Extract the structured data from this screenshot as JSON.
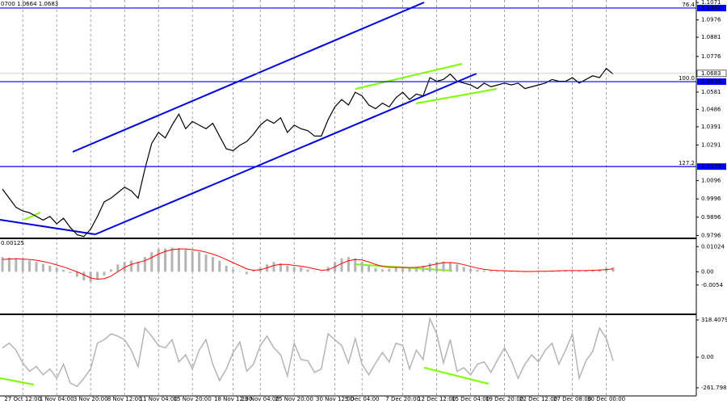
{
  "chart_data": [
    {
      "type": "line",
      "header": "0700 1.0664 1.0683",
      "categories": [
        null,
        null,
        null,
        "27 Oct 12:00",
        null,
        null,
        null,
        null,
        "1 Nov 04:00",
        null,
        null,
        null,
        null,
        "3 Nov 20:00",
        null,
        null,
        null,
        null,
        "8 Nov 12:00",
        null,
        null,
        null,
        null,
        "11 Nov 04:00",
        null,
        null,
        null,
        null,
        "15 Nov 20:00",
        null,
        null,
        null,
        null,
        null,
        "18 Nov 12:00",
        null,
        null,
        null,
        "23 Nov 04:00",
        null,
        null,
        null,
        null,
        "25 Nov 20:00",
        null,
        null,
        null,
        null,
        null,
        "30 Nov 12:00",
        null,
        null,
        null,
        "5 Dec 04:00",
        null,
        null,
        null,
        null,
        null,
        "7 Dec 20:00",
        null,
        null,
        null,
        null,
        "12 Dec 12:00",
        null,
        null,
        null,
        null,
        "15 Dec 04:00",
        null,
        null,
        null,
        null,
        "19 Dec 20:00",
        null,
        null,
        null,
        null,
        "22 Dec 12:00",
        null,
        null,
        null,
        null,
        "27 Dec 08:00",
        null,
        null,
        null,
        null,
        "30 Dec 00:00",
        null
      ],
      "values": [
        1.005,
        1.0,
        0.995,
        0.993,
        0.992,
        0.99,
        0.988,
        0.99,
        0.986,
        0.989,
        0.984,
        0.98,
        0.979,
        0.983,
        0.99,
        0.998,
        1.0,
        1.003,
        1.006,
        1.004,
        1.0,
        1.016,
        1.03,
        1.036,
        1.033,
        1.04,
        1.046,
        1.038,
        1.042,
        1.04,
        1.038,
        1.041,
        1.034,
        1.027,
        1.026,
        1.029,
        1.031,
        1.035,
        1.04,
        1.043,
        1.041,
        1.044,
        1.036,
        1.04,
        1.038,
        1.037,
        1.034,
        1.034,
        1.043,
        1.05,
        1.054,
        1.051,
        1.058,
        1.056,
        1.051,
        1.049,
        1.052,
        1.05,
        1.055,
        1.058,
        1.054,
        1.057,
        1.056,
        1.066,
        1.064,
        1.065,
        1.068,
        1.064,
        1.063,
        1.062,
        1.06,
        1.063,
        1.061,
        1.062,
        1.063,
        1.062,
        1.063,
        1.06,
        1.061,
        1.062,
        1.063,
        1.065,
        1.064,
        1.064,
        1.066,
        1.063,
        1.065,
        1.067,
        1.066,
        1.071,
        1.068
      ],
      "color": "#000000",
      "ylim": [
        0.978,
        1.1085
      ],
      "yticks": [
        1.1071,
        1.0976,
        1.0881,
        1.0776,
        1.0581,
        1.0486,
        1.0391,
        1.0291,
        1.0096,
        0.9996,
        0.9896,
        0.9796
      ],
      "levels": [
        {
          "value": 1.1041,
          "name": "76.4"
        },
        {
          "value": 1.0638,
          "name": "100.0"
        },
        {
          "value": 1.0173,
          "name": "127.2"
        }
      ],
      "level_color": "#0000ff",
      "current_price": 1.0683
    },
    {
      "type": "macd",
      "header": "0.00125",
      "histogram": {
        "color": "#b4b4b4",
        "values": [
          0.006,
          0.0058,
          0.0055,
          0.005,
          0.0046,
          0.004,
          0.0032,
          0.0025,
          0.0015,
          0.0008,
          -0.0005,
          -0.002,
          -0.0035,
          -0.004,
          -0.003,
          -0.0015,
          0.001,
          0.003,
          0.004,
          0.0045,
          0.0042,
          0.006,
          0.008,
          0.0092,
          0.0095,
          0.0098,
          0.0096,
          0.009,
          0.0085,
          0.008,
          0.007,
          0.006,
          0.0045,
          0.0025,
          0.001,
          0.0002,
          -0.001,
          0.0005,
          0.0015,
          0.003,
          0.004,
          0.0035,
          0.0025,
          0.002,
          0.0018,
          0.001,
          0.0002,
          -0.0002,
          0.002,
          0.004,
          0.0055,
          0.006,
          0.0055,
          0.004,
          0.0025,
          0.0015,
          0.001,
          0.0012,
          0.002,
          0.0018,
          0.0015,
          0.002,
          0.0025,
          0.0035,
          0.004,
          0.0042,
          0.0038,
          0.003,
          0.002,
          0.0012,
          0.0008,
          0.0005,
          0.0004,
          0.0003,
          0.0002,
          0.0002,
          0.0001,
          0.0,
          0.0001,
          0.0002,
          0.0003,
          0.0005,
          0.0006,
          0.0005,
          0.0006,
          0.0005,
          0.0006,
          0.0007,
          0.001,
          0.0015,
          0.0018
        ]
      },
      "signal": {
        "color": "#ff0000",
        "values": [
          0.005,
          0.0052,
          0.0053,
          0.0052,
          0.005,
          0.0047,
          0.0042,
          0.0036,
          0.0028,
          0.002,
          0.001,
          0.0,
          -0.0012,
          -0.0025,
          -0.003,
          -0.0028,
          -0.0018,
          0.0,
          0.0018,
          0.003,
          0.0038,
          0.0045,
          0.0058,
          0.0072,
          0.0083,
          0.009,
          0.0093,
          0.0093,
          0.009,
          0.0086,
          0.008,
          0.0072,
          0.0062,
          0.005,
          0.0037,
          0.0025,
          0.0012,
          0.0006,
          0.0008,
          0.0016,
          0.0026,
          0.003,
          0.003,
          0.0026,
          0.0023,
          0.0018,
          0.0012,
          0.0006,
          0.0008,
          0.002,
          0.0034,
          0.0045,
          0.005,
          0.0048,
          0.004,
          0.003,
          0.0022,
          0.0018,
          0.0018,
          0.0018,
          0.0017,
          0.0018,
          0.0021,
          0.0026,
          0.0032,
          0.0037,
          0.0038,
          0.0035,
          0.0029,
          0.0022,
          0.0015,
          0.001,
          0.0007,
          0.0005,
          0.0004,
          0.0003,
          0.0002,
          0.0001,
          0.0001,
          0.0002,
          0.0002,
          0.0003,
          0.0004,
          0.0005,
          0.0005,
          0.0005,
          0.0005,
          0.0006,
          0.0007,
          0.0009,
          0.0012
        ]
      },
      "ylim": [
        -0.017,
        0.01329
      ],
      "yticks": [
        0.01024,
        {
          "value": 0,
          "label": "0.00"
        },
        -0.0054
      ]
    },
    {
      "type": "line",
      "values": [
        80,
        120,
        60,
        -50,
        -120,
        -80,
        -150,
        -100,
        -180,
        -60,
        -220,
        -250,
        -180,
        -100,
        120,
        150,
        200,
        180,
        150,
        60,
        -80,
        250,
        180,
        100,
        80,
        150,
        -40,
        20,
        -100,
        60,
        150,
        -60,
        -200,
        -100,
        40,
        130,
        -120,
        -60,
        100,
        180,
        80,
        20,
        -160,
        120,
        -20,
        -30,
        -130,
        -100,
        200,
        150,
        100,
        -50,
        160,
        -60,
        -150,
        -50,
        40,
        -40,
        120,
        100,
        -100,
        60,
        -20,
        330,
        200,
        -50,
        150,
        -120,
        -90,
        -150,
        -60,
        -40,
        -130,
        -20,
        80,
        -30,
        -180,
        -60,
        20,
        -40,
        60,
        120,
        -60,
        60,
        200,
        -180,
        -30,
        50,
        250,
        160,
        -30
      ],
      "color": "#b4b4b4",
      "ylim": [
        -331,
        360
      ],
      "yticks": [
        318.4079,
        {
          "value": 0,
          "label": "0.00"
        },
        -261.798
      ]
    }
  ]
}
